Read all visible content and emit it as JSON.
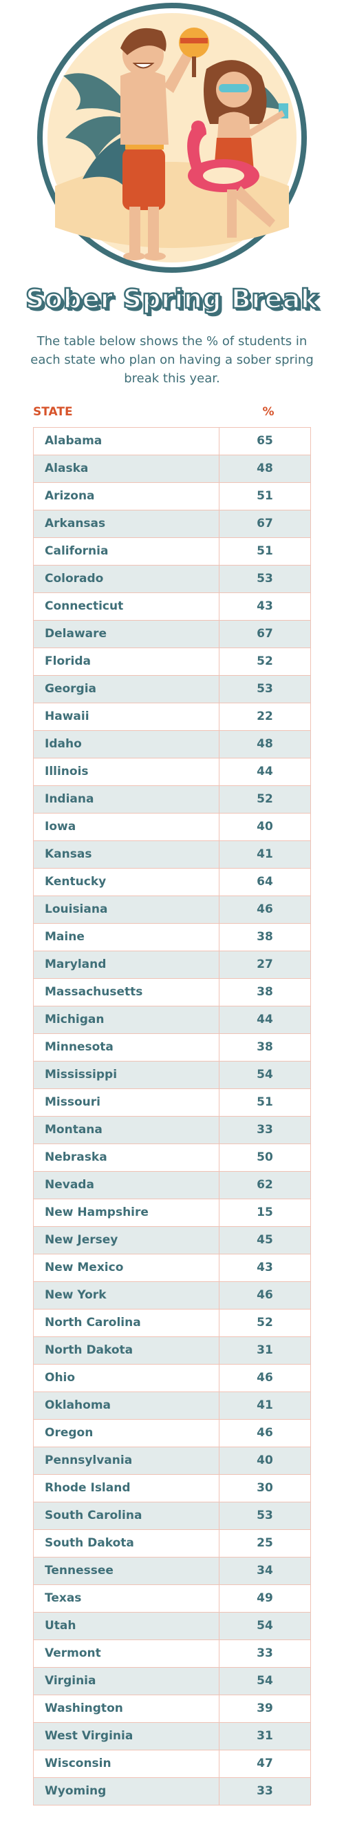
{
  "header": {
    "title": "Sober Spring Break",
    "subtitle": "The table below shows the % of students in each state who plan on having a sober spring break this year."
  },
  "chart_data": {
    "type": "table",
    "columns": [
      "STATE",
      "%"
    ],
    "rows": [
      {
        "state": "Alabama",
        "value": 65
      },
      {
        "state": "Alaska",
        "value": 48
      },
      {
        "state": "Arizona",
        "value": 51
      },
      {
        "state": "Arkansas",
        "value": 67
      },
      {
        "state": "California",
        "value": 51
      },
      {
        "state": "Colorado",
        "value": 53
      },
      {
        "state": "Connecticut",
        "value": 43
      },
      {
        "state": "Delaware",
        "value": 67
      },
      {
        "state": "Florida",
        "value": 52
      },
      {
        "state": "Georgia",
        "value": 53
      },
      {
        "state": "Hawaii",
        "value": 22
      },
      {
        "state": "Idaho",
        "value": 48
      },
      {
        "state": "Illinois",
        "value": 44
      },
      {
        "state": "Indiana",
        "value": 52
      },
      {
        "state": "Iowa",
        "value": 40
      },
      {
        "state": "Kansas",
        "value": 41
      },
      {
        "state": "Kentucky",
        "value": 64
      },
      {
        "state": "Louisiana",
        "value": 46
      },
      {
        "state": "Maine",
        "value": 38
      },
      {
        "state": "Maryland",
        "value": 27
      },
      {
        "state": "Massachusetts",
        "value": 38
      },
      {
        "state": "Michigan",
        "value": 44
      },
      {
        "state": "Minnesota",
        "value": 38
      },
      {
        "state": "Mississippi",
        "value": 54
      },
      {
        "state": "Missouri",
        "value": 51
      },
      {
        "state": "Montana",
        "value": 33
      },
      {
        "state": "Nebraska",
        "value": 50
      },
      {
        "state": "Nevada",
        "value": 62
      },
      {
        "state": "New Hampshire",
        "value": 15
      },
      {
        "state": "New Jersey",
        "value": 45
      },
      {
        "state": "New Mexico",
        "value": 43
      },
      {
        "state": "New York",
        "value": 46
      },
      {
        "state": "North Carolina",
        "value": 52
      },
      {
        "state": "North Dakota",
        "value": 31
      },
      {
        "state": "Ohio",
        "value": 46
      },
      {
        "state": "Oklahoma",
        "value": 41
      },
      {
        "state": "Oregon",
        "value": 46
      },
      {
        "state": "Pennsylvania",
        "value": 40
      },
      {
        "state": "Rhode Island",
        "value": 30
      },
      {
        "state": "South Carolina",
        "value": 53
      },
      {
        "state": "South Dakota",
        "value": 25
      },
      {
        "state": "Tennessee",
        "value": 34
      },
      {
        "state": "Texas",
        "value": 49
      },
      {
        "state": "Utah",
        "value": 54
      },
      {
        "state": "Vermont",
        "value": 33
      },
      {
        "state": "Virginia",
        "value": 54
      },
      {
        "state": "Washington",
        "value": 39
      },
      {
        "state": "West Virginia",
        "value": 31
      },
      {
        "state": "Wisconsin",
        "value": 47
      },
      {
        "state": "Wyoming",
        "value": 33
      }
    ]
  },
  "colors": {
    "accent_red": "#d7542b",
    "teal_text": "#3f6f78",
    "row_alt": "#e3ebeb",
    "border": "#f0c2b5",
    "hero_bg": "#fce9c7"
  },
  "icons": {
    "hero": "beach-couple-illustration"
  }
}
